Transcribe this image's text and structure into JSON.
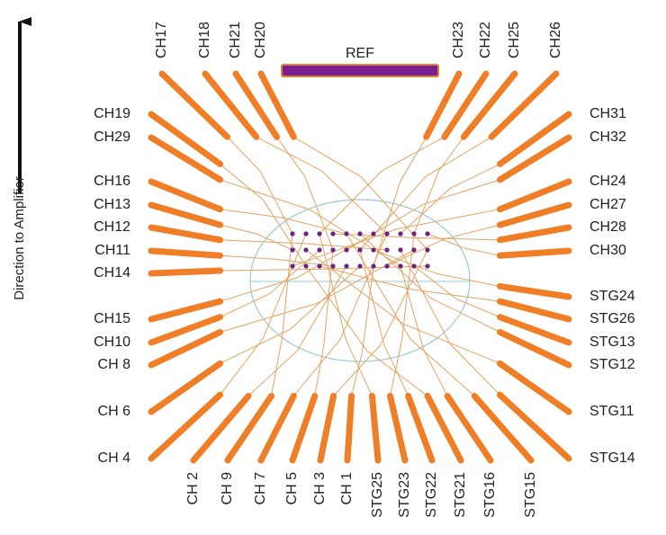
{
  "axis_label": "Direction to Amplifier",
  "ref_label": "REF",
  "top_labels": [
    "CH17",
    "CH18",
    "CH21",
    "CH20",
    "CH23",
    "CH22",
    "CH25",
    "CH26"
  ],
  "left_labels": [
    "CH19",
    "CH29",
    "CH16",
    "CH13",
    "CH12",
    "CH11",
    "CH14",
    "CH15",
    "CH10",
    "CH 8",
    "CH 6",
    "CH 4"
  ],
  "right_labels": [
    "CH31",
    "CH32",
    "CH24",
    "CH27",
    "CH28",
    "CH30",
    "STG24",
    "STG26",
    "STG13",
    "STG12",
    "STG11",
    "STG14"
  ],
  "bottom_labels": [
    "CH 2",
    "CH 9",
    "CH 7",
    "CH 5",
    "CH 3",
    "CH 1",
    "STG25",
    "STG23",
    "STG22",
    "STG21",
    "STG16",
    "STG15"
  ]
}
